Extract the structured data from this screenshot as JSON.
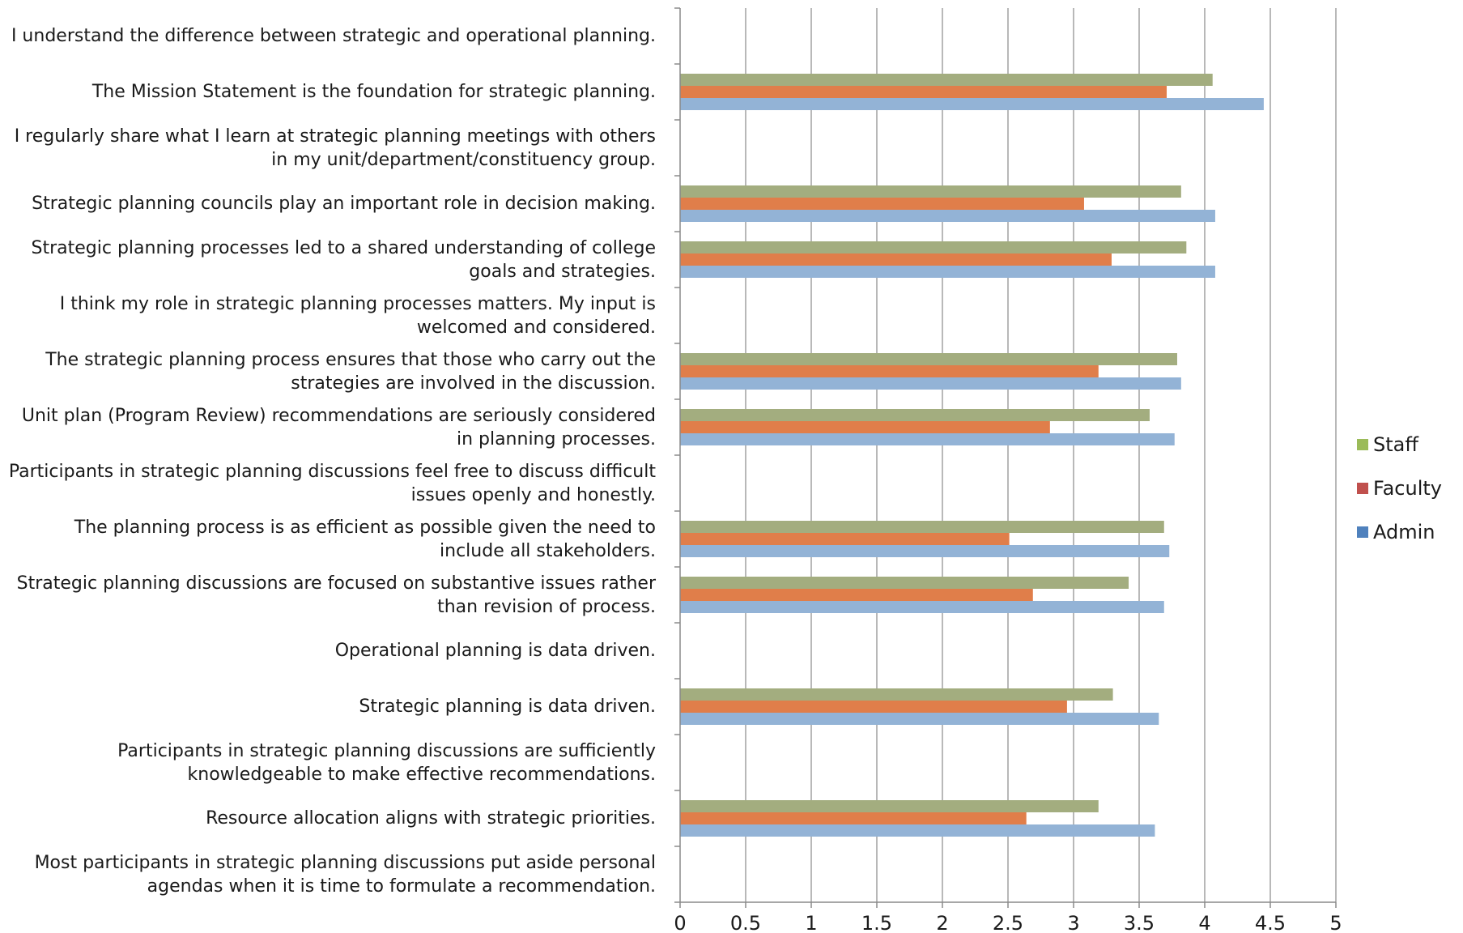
{
  "chart_data": {
    "type": "bar",
    "orientation": "horizontal",
    "categories": [
      "I understand the difference between strategic and operational planning.",
      "The Mission Statement is the foundation for strategic planning.",
      "I regularly share what I learn at strategic planning meetings with others in my unit/department/constituency group.",
      "Strategic planning councils play an important role in decision making.",
      "Strategic planning processes led to a shared understanding of college goals and strategies.",
      "I think my role in strategic planning processes matters. My input is welcomed and considered.",
      "The strategic planning process ensures that those who carry out the strategies are involved in the discussion.",
      "Unit plan (Program Review) recommendations are seriously considered in planning processes.",
      "Participants in strategic planning discussions feel free to discuss difficult issues openly and honestly.",
      "The planning process is as efficient as possible given the need to include all stakeholders.",
      "Strategic planning discussions are focused on substantive issues rather than revision of process.",
      "Operational planning is data driven.",
      "Strategic planning is data driven.",
      "Participants in strategic planning discussions are sufficiently knowledgeable to make effective recommendations.",
      "Resource allocation aligns with strategic priorities.",
      "Most participants in strategic planning discussions put aside personal agendas when it is time to formulate a recommendation."
    ],
    "series": [
      {
        "name": "Staff",
        "color": "#9bbb59",
        "bar_color": "#a3ad7f",
        "values": [
          null,
          4.06,
          null,
          3.82,
          3.86,
          null,
          3.79,
          3.58,
          null,
          3.69,
          3.42,
          null,
          3.3,
          null,
          3.19,
          null
        ]
      },
      {
        "name": "Faculty",
        "color": "#c0504d",
        "bar_color": "#e07e4a",
        "values": [
          null,
          3.71,
          null,
          3.08,
          3.29,
          null,
          3.19,
          2.82,
          null,
          2.51,
          2.69,
          null,
          2.95,
          null,
          2.64,
          null
        ]
      },
      {
        "name": "Admin",
        "color": "#4f81bd",
        "bar_color": "#93b3d6",
        "values": [
          null,
          4.45,
          null,
          4.08,
          4.08,
          null,
          3.82,
          3.77,
          null,
          3.73,
          3.69,
          null,
          3.65,
          null,
          3.62,
          null
        ]
      }
    ],
    "xlim": [
      0,
      5
    ],
    "xticks": [
      "0",
      "0.5",
      "1",
      "1.5",
      "2",
      "2.5",
      "3",
      "3.5",
      "4",
      "4.5",
      "5"
    ],
    "xtick_values": [
      0,
      0.5,
      1,
      1.5,
      2,
      2.5,
      3,
      3.5,
      4,
      4.5,
      5
    ],
    "gridlines": "vertical",
    "legend_position": "right",
    "title": "",
    "xlabel": "",
    "ylabel": ""
  }
}
